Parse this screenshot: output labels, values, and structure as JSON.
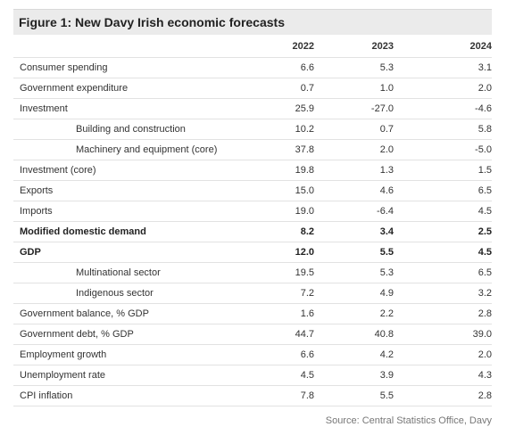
{
  "figure": {
    "title": "Figure 1: New Davy Irish economic forecasts",
    "source": "Source: Central Statistics Office, Davy"
  },
  "table": {
    "years": [
      "2022",
      "2023",
      "2024"
    ],
    "rows": [
      {
        "label": "Consumer spending",
        "values": [
          "6.6",
          "5.3",
          "3.1"
        ],
        "indent": false,
        "bold": false
      },
      {
        "label": "Government expenditure",
        "values": [
          "0.7",
          "1.0",
          "2.0"
        ],
        "indent": false,
        "bold": false
      },
      {
        "label": "Investment",
        "values": [
          "25.9",
          "-27.0",
          "-4.6"
        ],
        "indent": false,
        "bold": false
      },
      {
        "label": "Building and construction",
        "values": [
          "10.2",
          "0.7",
          "5.8"
        ],
        "indent": true,
        "bold": false
      },
      {
        "label": "Machinery and equipment (core)",
        "values": [
          "37.8",
          "2.0",
          "-5.0"
        ],
        "indent": true,
        "bold": false
      },
      {
        "label": "Investment (core)",
        "values": [
          "19.8",
          "1.3",
          "1.5"
        ],
        "indent": false,
        "bold": false
      },
      {
        "label": "Exports",
        "values": [
          "15.0",
          "4.6",
          "6.5"
        ],
        "indent": false,
        "bold": false
      },
      {
        "label": "Imports",
        "values": [
          "19.0",
          "-6.4",
          "4.5"
        ],
        "indent": false,
        "bold": false
      },
      {
        "label": "Modified domestic demand",
        "values": [
          "8.2",
          "3.4",
          "2.5"
        ],
        "indent": false,
        "bold": true
      },
      {
        "label": "GDP",
        "values": [
          "12.0",
          "5.5",
          "4.5"
        ],
        "indent": false,
        "bold": true
      },
      {
        "label": "Multinational sector",
        "values": [
          "19.5",
          "5.3",
          "6.5"
        ],
        "indent": true,
        "bold": false
      },
      {
        "label": "Indigenous sector",
        "values": [
          "7.2",
          "4.9",
          "3.2"
        ],
        "indent": true,
        "bold": false
      },
      {
        "label": "Government balance, % GDP",
        "values": [
          "1.6",
          "2.2",
          "2.8"
        ],
        "indent": false,
        "bold": false
      },
      {
        "label": "Government debt, % GDP",
        "values": [
          "44.7",
          "40.8",
          "39.0"
        ],
        "indent": false,
        "bold": false
      },
      {
        "label": "Employment growth",
        "values": [
          "6.6",
          "4.2",
          "2.0"
        ],
        "indent": false,
        "bold": false
      },
      {
        "label": "Unemployment rate",
        "values": [
          "4.5",
          "3.9",
          "4.3"
        ],
        "indent": false,
        "bold": false
      },
      {
        "label": "CPI inflation",
        "values": [
          "7.8",
          "5.5",
          "2.8"
        ],
        "indent": false,
        "bold": false
      }
    ]
  }
}
